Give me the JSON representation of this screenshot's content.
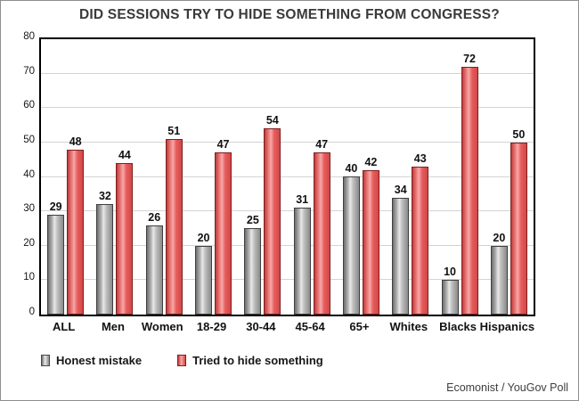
{
  "title": "DID SESSIONS TRY TO HIDE SOMETHING FROM CONGRESS?",
  "footer": "Ecomonist / YouGov Poll",
  "colors": {
    "honest_mistake_gray": "#a6a6a6",
    "tried_to_hide_red": "#e8504f",
    "grid": "#d4d4d4",
    "frame": "#000000",
    "title_text": "#3a3a3a"
  },
  "chart_data": {
    "type": "bar",
    "title": "DID SESSIONS TRY TO HIDE SOMETHING FROM CONGRESS?",
    "categories": [
      "ALL",
      "Men",
      "Women",
      "18-29",
      "30-44",
      "45-64",
      "65+",
      "Whites",
      "Blacks",
      "Hispanics"
    ],
    "series": [
      {
        "name": "Honest mistake",
        "values": [
          29,
          32,
          26,
          20,
          25,
          31,
          40,
          34,
          10,
          20
        ]
      },
      {
        "name": "Tried to hide something",
        "values": [
          48,
          44,
          51,
          47,
          54,
          47,
          42,
          43,
          72,
          50
        ]
      }
    ],
    "xlabel": "",
    "ylabel": "",
    "ylim": [
      0,
      80
    ],
    "ytick_interval": 10,
    "ytick_labels": [
      "0",
      "10",
      "20",
      "30",
      "40",
      "50",
      "60",
      "70",
      "80"
    ],
    "grid": true,
    "value_labels": true,
    "legend_position": "bottom"
  }
}
